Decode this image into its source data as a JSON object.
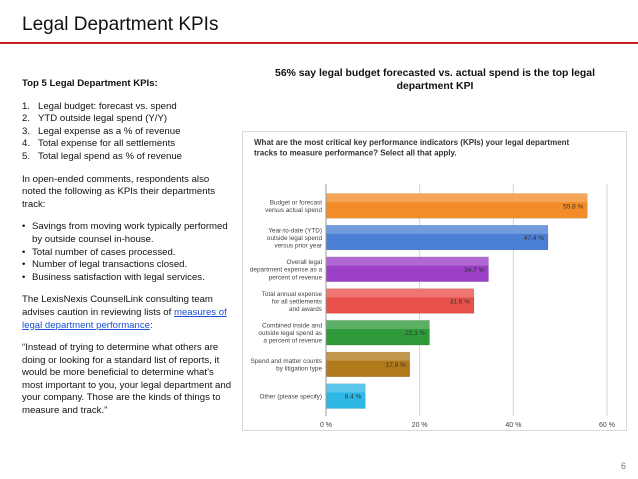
{
  "slide": {
    "title": "Legal Department KPIs",
    "page_number": "6",
    "accent_color": "#c81e1e"
  },
  "left": {
    "heading": "Top 5 Legal Department KPIs:",
    "kpis": [
      {
        "num": "1.",
        "text": "Legal budget: forecast vs. spend"
      },
      {
        "num": "2.",
        "text": "YTD outside legal spend (Y/Y)"
      },
      {
        "num": "3.",
        "text": "Legal expense as a % of revenue"
      },
      {
        "num": "4.",
        "text": "Total expense for all settlements"
      },
      {
        "num": "5.",
        "text": "Total legal spend as % of revenue"
      }
    ],
    "comments_intro": "In open-ended comments, respondents also noted the following as KPIs their departments track:",
    "bullets": [
      "Savings from moving work typically performed by outside counsel in-house.",
      "Total number of cases processed.",
      "Number of legal transactions closed.",
      "Business satisfaction with legal services."
    ],
    "consult_text": "The LexisNexis CounselLink consulting team advises caution in reviewing lists of",
    "consult_link": "measures of legal department performance",
    "consult_suffix": ":",
    "quote": "“Instead of trying to determine what others are doing or looking for a standard list of reports, it would be more beneficial to determine what’s most important to you, your legal department and your company. Those are the kinds of things to measure and track.”"
  },
  "chart_heading": "56% say legal budget forecasted vs. actual spend is the top legal department KPI",
  "chart_data": {
    "type": "bar",
    "orientation": "horizontal",
    "title": "What are the most critical key performance indicators (KPIs) your legal department tracks to measure performance? Select all that apply.",
    "categories": [
      [
        "Budget or forecast",
        "versus actual spend"
      ],
      [
        "Year-to-date (YTD)",
        "outside legal spend",
        "versus prior year"
      ],
      [
        "Overall legal",
        "department expense as a",
        "percent of revenue"
      ],
      [
        "Total annual expense",
        "for all settlements",
        "and awards"
      ],
      [
        "Combined inside and",
        "outside legal spend as",
        "a percent of revenue"
      ],
      [
        "Spend and matter counts",
        "by litigation type"
      ],
      [
        "Other (please specify)"
      ]
    ],
    "values": [
      55.8,
      47.4,
      34.7,
      31.6,
      22.1,
      17.9,
      8.4
    ],
    "value_labels": [
      "55.8 %",
      "47.4 %",
      "34.7 %",
      "31.6 %",
      "22.1 %",
      "17.9 %",
      "8.4 %"
    ],
    "colors": [
      "#f28c28",
      "#4a7fd4",
      "#9b3fc6",
      "#e8504a",
      "#2f9a3a",
      "#b07a1a",
      "#2eb8e6"
    ],
    "xlim": [
      0,
      60
    ],
    "ticks": [
      0,
      20,
      40,
      60
    ],
    "tick_labels": [
      "0 %",
      "20 %",
      "40 %",
      "60 %"
    ],
    "grid": true
  }
}
